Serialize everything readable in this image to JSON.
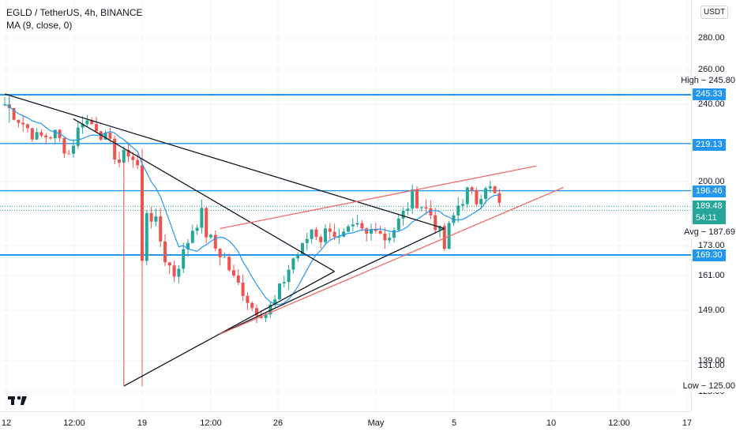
{
  "legend": {
    "symbol": "EGLD / TetherUS, 4h, BINANCE",
    "indicator": "MA (9, close, 0)"
  },
  "price_axis": {
    "currency": "USDT",
    "ticks": [
      "280.00",
      "260.00",
      "240.00",
      "200.00",
      "173.00",
      "161.00",
      "149.00",
      "139.00",
      "131.00",
      "125.00"
    ]
  },
  "time_axis": {
    "ticks": [
      "12",
      "12:00",
      "19",
      "12:00",
      "26",
      "May",
      "5",
      "10",
      "12:00",
      "17"
    ]
  },
  "price_labels": {
    "high": "High − 245.80",
    "level_245": "245.33",
    "level_219": "219.13",
    "level_196": "196.46",
    "current_price": "189.48",
    "countdown": "54:11",
    "avg": "Avg − 187.69",
    "level_169": "169.30",
    "low": "Low − 125.00"
  },
  "colors": {
    "up": "#26a69a",
    "down": "#ef5350",
    "ma": "#2196f3",
    "hline": "#2196f3",
    "trend_black": "#131722",
    "trend_red": "#f06b6b",
    "label_bg": "#2196f3",
    "current_bg": "#26a69a"
  },
  "chart_data": {
    "type": "candlestick",
    "symbol": "EGLD / TetherUS",
    "interval": "4h",
    "exchange": "BINANCE",
    "y_scale": "log",
    "ylim": [
      120,
      290
    ],
    "horizontal_levels": [
      245.33,
      219.13,
      196.46,
      169.3
    ],
    "high": 245.8,
    "low": 125.0,
    "avg": 187.69,
    "last_close": 189.48,
    "close_path": [
      [
        0,
        240
      ],
      [
        3,
        232
      ],
      [
        7,
        222
      ],
      [
        11,
        224
      ],
      [
        14,
        214
      ],
      [
        17,
        232
      ],
      [
        20,
        228
      ],
      [
        23,
        218
      ],
      [
        25,
        210
      ],
      [
        27,
        215
      ],
      [
        29,
        208
      ],
      [
        30,
        166
      ],
      [
        31,
        188
      ],
      [
        33,
        182
      ],
      [
        35,
        168
      ],
      [
        37,
        162
      ],
      [
        39,
        170
      ],
      [
        41,
        180
      ],
      [
        43,
        186
      ],
      [
        44,
        178
      ],
      [
        46,
        172
      ],
      [
        48,
        168
      ],
      [
        50,
        160
      ],
      [
        52,
        156
      ],
      [
        54,
        150
      ],
      [
        57,
        148
      ],
      [
        59,
        152
      ],
      [
        61,
        160
      ],
      [
        63,
        168
      ],
      [
        65,
        172
      ],
      [
        67,
        180
      ],
      [
        69,
        176
      ],
      [
        71,
        181
      ],
      [
        73,
        175
      ],
      [
        75,
        178
      ],
      [
        77,
        180
      ],
      [
        79,
        177
      ],
      [
        81,
        182
      ],
      [
        83,
        176
      ],
      [
        85,
        180
      ],
      [
        87,
        186
      ],
      [
        89,
        194
      ],
      [
        91,
        190
      ],
      [
        93,
        186
      ],
      [
        95,
        178
      ],
      [
        96,
        172
      ],
      [
        97,
        180
      ],
      [
        99,
        190
      ],
      [
        101,
        196
      ],
      [
        103,
        192
      ],
      [
        105,
        200
      ],
      [
        107,
        194
      ],
      [
        108,
        190
      ]
    ],
    "ma_period": 9
  }
}
